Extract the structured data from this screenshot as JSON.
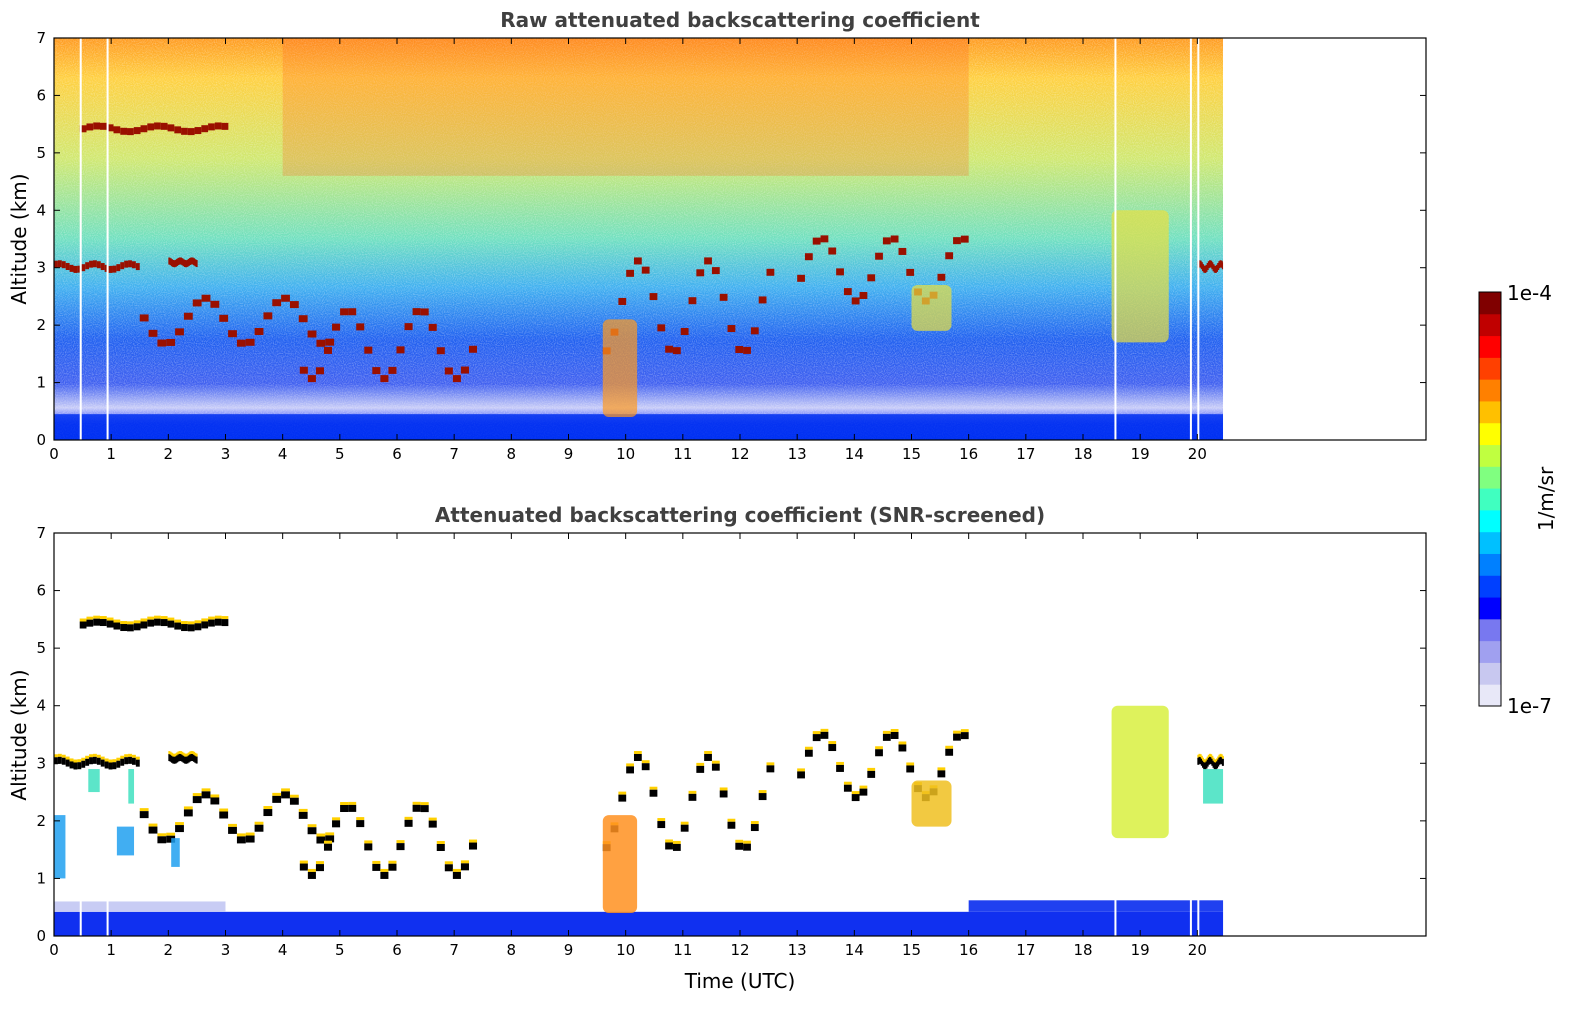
{
  "chart_data": [
    {
      "type": "heatmap",
      "title": "Raw attenuated backscattering coefficient",
      "xlabel": "",
      "ylabel": "Altitude (km)",
      "xlim": [
        0,
        24
      ],
      "ylim": [
        0,
        7
      ],
      "x_ticks": [
        "0",
        "1",
        "2",
        "3",
        "4",
        "5",
        "6",
        "7",
        "8",
        "9",
        "10",
        "11",
        "12",
        "13",
        "14",
        "15",
        "16",
        "17",
        "18",
        "19",
        "20"
      ],
      "y_ticks": [
        "0",
        "1",
        "2",
        "3",
        "4",
        "5",
        "6",
        "7"
      ],
      "data_extent_x": [
        0,
        20.45
      ],
      "colorscale": "jet",
      "color_range": [
        1e-07,
        0.0001
      ],
      "features": {
        "cloud_layers": [
          {
            "x": [
              0.45,
              3.05
            ],
            "y": [
              5.35,
              5.45
            ]
          },
          {
            "x": [
              0.0,
              1.5
            ],
            "y": [
              2.95,
              3.05
            ]
          },
          {
            "x": [
              2.0,
              2.5
            ],
            "y": [
              3.05,
              3.1
            ]
          },
          {
            "x": [
              1.5,
              4.9
            ],
            "y": [
              1.65,
              2.45
            ]
          },
          {
            "x": [
              4.3,
              7.4
            ],
            "y": [
              1.05,
              2.25
            ]
          },
          {
            "x": [
              9.6,
              12.6
            ],
            "y": [
              1.5,
              3.1
            ]
          },
          {
            "x": [
              13.0,
              16.0
            ],
            "y": [
              2.4,
              3.5
            ]
          },
          {
            "x": [
              20.0,
              20.45
            ],
            "y": [
              2.95,
              3.05
            ]
          }
        ],
        "aerosol_plumes": [
          {
            "x": [
              9.6,
              10.2
            ],
            "y": [
              0.4,
              2.1
            ]
          },
          {
            "x": [
              18.5,
              19.5
            ],
            "y": [
              1.7,
              4.0
            ]
          },
          {
            "x": [
              15.0,
              15.7
            ],
            "y": [
              1.9,
              2.7
            ]
          }
        ]
      }
    },
    {
      "type": "heatmap",
      "title": "Attenuated backscattering coefficient (SNR-screened)",
      "xlabel": "Time (UTC)",
      "ylabel": "Altitude (km)",
      "xlim": [
        0,
        24
      ],
      "ylim": [
        0,
        7
      ],
      "x_ticks": [
        "0",
        "1",
        "2",
        "3",
        "4",
        "5",
        "6",
        "7",
        "8",
        "9",
        "10",
        "11",
        "12",
        "13",
        "14",
        "15",
        "16",
        "17",
        "18",
        "19",
        "20"
      ],
      "y_ticks": [
        "0",
        "1",
        "2",
        "3",
        "4",
        "5",
        "6",
        "7"
      ],
      "data_extent_x": [
        0,
        20.45
      ],
      "colorscale": "jet",
      "color_range": [
        1e-07,
        0.0001
      ],
      "saturated_color": "#000000"
    }
  ],
  "colorbar": {
    "label": "1/m/sr",
    "max_label": "1e-4",
    "min_label": "1e-7",
    "colors": [
      "#e8e8f8",
      "#c8c8f0",
      "#a0a0f0",
      "#7878f0",
      "#0000ff",
      "#0040ff",
      "#0080ff",
      "#00c0ff",
      "#00ffff",
      "#40ffc0",
      "#80ff80",
      "#c0ff40",
      "#ffff00",
      "#ffc000",
      "#ff8000",
      "#ff4000",
      "#ff0000",
      "#c00000",
      "#800000"
    ]
  }
}
